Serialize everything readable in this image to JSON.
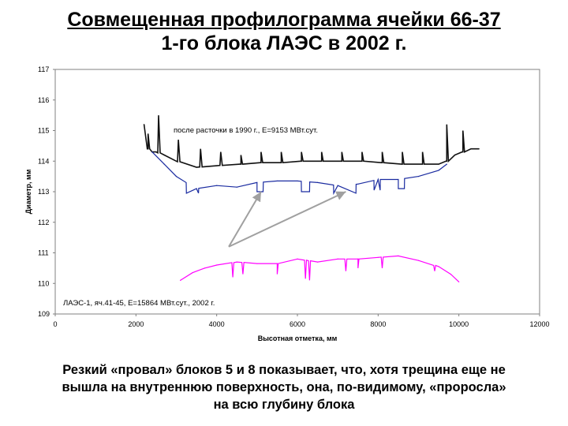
{
  "slide": {
    "title_line1": "Совмещенная профилограмма ячейки 66-37",
    "title_line2": "1-го блока ЛАЭС в 2002 г.",
    "caption_line1": "Резкий «провал» блоков 5 и 8 показывает, что, хотя трещина еще не",
    "caption_line2": "вышла на внутреннюю поверхность, она, по-видимому, «проросла»",
    "caption_line3": "на всю глубину блока"
  },
  "colors": {
    "black_series": "#111111",
    "blue_series": "#1a2ba0",
    "magenta_series": "#ff00ff",
    "arrow": "#a0a0a0",
    "plot_border": "#808080"
  },
  "chart_data": {
    "type": "line",
    "xlabel": "Высотная отметка, мм",
    "ylabel": "Диаметр, мм",
    "xlim": [
      0,
      12000
    ],
    "ylim": [
      109,
      117
    ],
    "xticks": [
      "0",
      "2000",
      "4000",
      "6000",
      "8000",
      "10000",
      "12000"
    ],
    "yticks": [
      "109",
      "110",
      "111",
      "112",
      "113",
      "114",
      "115",
      "116",
      "117"
    ],
    "grid": false,
    "annotations": [
      "после расточки в 1990 г., Е=9153 МВт.сут.",
      "ЛАЭС-1, яч.41-45, Е=15864 МВт.сут., 2002 г."
    ],
    "series": [
      {
        "color": "black",
        "x": [
          2200,
          2300,
          2400,
          2500,
          2700,
          3000,
          3500,
          4000,
          4600,
          5100,
          5600,
          6100,
          6600,
          7100,
          7600,
          8100,
          8600,
          9100,
          9500,
          9700,
          9900,
          10100,
          10300,
          10500
        ],
        "y": [
          115.2,
          114.4,
          114.3,
          114.3,
          114.2,
          114.0,
          113.8,
          113.85,
          113.9,
          113.95,
          113.95,
          114.0,
          114.0,
          114.0,
          114.0,
          113.95,
          113.9,
          113.9,
          113.9,
          114.0,
          114.2,
          114.3,
          114.4,
          114.4
        ],
        "spikes": [
          {
            "x": 2300,
            "y": 114.9
          },
          {
            "x": 2560,
            "y": 115.5
          },
          {
            "x": 3050,
            "y": 114.7
          },
          {
            "x": 3600,
            "y": 114.4
          },
          {
            "x": 4100,
            "y": 114.3
          },
          {
            "x": 4600,
            "y": 114.2
          },
          {
            "x": 5100,
            "y": 114.3
          },
          {
            "x": 5600,
            "y": 114.3
          },
          {
            "x": 6100,
            "y": 114.3
          },
          {
            "x": 6600,
            "y": 114.3
          },
          {
            "x": 7100,
            "y": 114.3
          },
          {
            "x": 7600,
            "y": 114.3
          },
          {
            "x": 8100,
            "y": 114.3
          },
          {
            "x": 8600,
            "y": 114.3
          },
          {
            "x": 9100,
            "y": 114.3
          },
          {
            "x": 9700,
            "y": 115.2
          },
          {
            "x": 10100,
            "y": 115.0
          }
        ]
      },
      {
        "color": "blue",
        "x": [
          2400,
          2700,
          3000,
          3500,
          4000,
          4500,
          5000,
          5500,
          6000,
          6500,
          7000,
          7500,
          8000,
          8500,
          9000,
          9500,
          9700
        ],
        "y": [
          114.3,
          113.9,
          113.5,
          113.1,
          113.2,
          113.15,
          113.3,
          113.35,
          113.35,
          113.3,
          113.2,
          113.25,
          113.4,
          113.4,
          113.5,
          113.7,
          113.9
        ],
        "dips": [
          {
            "x1": 3250,
            "x2": 3550,
            "y": 112.95
          },
          {
            "x1": 5000,
            "x2": 5150,
            "y": 113.0
          },
          {
            "x1": 6100,
            "x2": 6300,
            "y": 113.0
          },
          {
            "x1": 6900,
            "x2": 7450,
            "y": 112.95
          },
          {
            "x1": 7900,
            "x2": 8050,
            "y": 113.05
          },
          {
            "x1": 8500,
            "x2": 8650,
            "y": 113.1
          }
        ]
      },
      {
        "color": "magenta",
        "x": [
          3100,
          3400,
          3700,
          4000,
          4500,
          5000,
          5500,
          6000,
          6500,
          7000,
          7500,
          8000,
          8500,
          9000,
          9500,
          9800,
          10000
        ],
        "y": [
          110.1,
          110.35,
          110.5,
          110.6,
          110.7,
          110.65,
          110.65,
          110.8,
          110.7,
          110.8,
          110.8,
          110.85,
          110.9,
          110.75,
          110.55,
          110.3,
          110.05
        ],
        "dips": [
          {
            "x": 4400,
            "y": 110.2
          },
          {
            "x": 4650,
            "y": 110.3
          },
          {
            "x": 5500,
            "y": 110.3
          },
          {
            "x": 6200,
            "y": 110.15
          },
          {
            "x": 6300,
            "y": 110.1
          },
          {
            "x": 7200,
            "y": 110.4
          },
          {
            "x": 7500,
            "y": 110.5
          },
          {
            "x": 8100,
            "y": 110.5
          },
          {
            "x": 9400,
            "y": 110.4
          }
        ]
      }
    ],
    "arrows": [
      {
        "from": [
          4300,
          111.2
        ],
        "to": [
          5100,
          113.0
        ]
      },
      {
        "from": [
          4300,
          111.2
        ],
        "to": [
          7200,
          113.0
        ]
      }
    ]
  }
}
